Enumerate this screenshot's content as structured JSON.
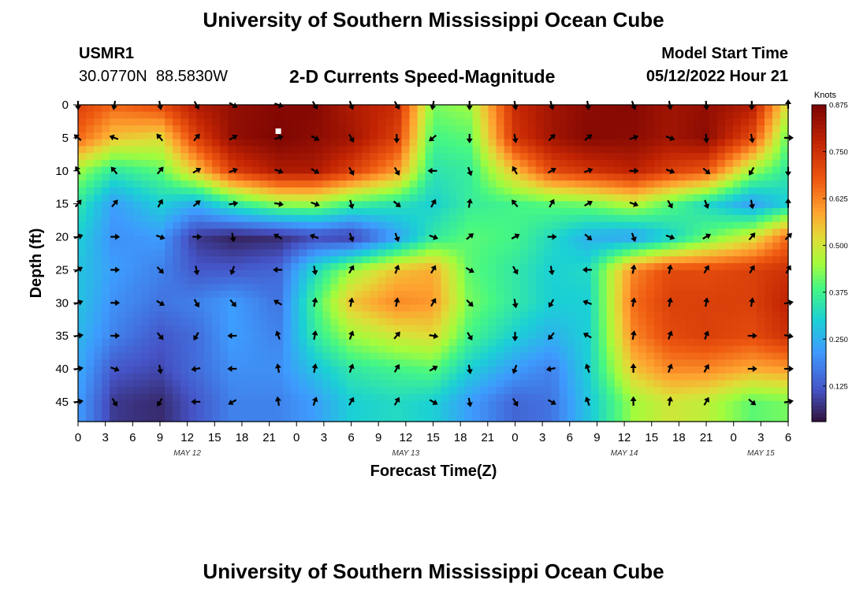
{
  "page": {
    "title": "University of Southern Mississippi Ocean Cube",
    "station_id": "USMR1",
    "station_coords": "30.0770N  88.5830W",
    "chart_title": "2-D Currents Speed-Magnitude",
    "model_start_label": "Model Start Time",
    "model_start_value": "05/12/2022 Hour 21",
    "footer_title": "University of Southern Mississippi Ocean Cube"
  },
  "chart_data": {
    "type": "heatmap",
    "title": "2-D Currents Speed-Magnitude",
    "xlabel": "Forecast Time(Z)",
    "ylabel": "Depth (ft)",
    "x_ticks": [
      "0",
      "3",
      "6",
      "9",
      "12",
      "15",
      "18",
      "21",
      "0",
      "3",
      "6",
      "9",
      "12",
      "15",
      "18",
      "21",
      "0",
      "3",
      "6",
      "9",
      "12",
      "15",
      "18",
      "21",
      "0",
      "3",
      "6"
    ],
    "x_range_hours": [
      0,
      78
    ],
    "date_labels": [
      {
        "label": "MAY 12",
        "hour": 12
      },
      {
        "label": "MAY 13",
        "hour": 36
      },
      {
        "label": "MAY 14",
        "hour": 60
      },
      {
        "label": "MAY 15",
        "hour": 75
      }
    ],
    "y_ticks": [
      0,
      5,
      10,
      15,
      20,
      25,
      30,
      35,
      40,
      45
    ],
    "ylim": [
      0,
      48
    ],
    "y_inverted": true,
    "colorbar": {
      "label": "Knots",
      "ticks": [
        "0.875",
        "0.750",
        "0.625",
        "0.500",
        "0.375",
        "0.250",
        "0.125"
      ],
      "range": [
        0.03,
        0.875
      ],
      "colormap": "turbo"
    },
    "arrow_hours": [
      0,
      4,
      9,
      13,
      17,
      22,
      26,
      30,
      35,
      39,
      43,
      48,
      52,
      56,
      61,
      65,
      69,
      74,
      78
    ],
    "arrow_depths": [
      0,
      5,
      10,
      15,
      20,
      25,
      30,
      35,
      40,
      45
    ],
    "speed_field": {
      "note": "speed in knots by depth (rows) and forecast hour (columns)",
      "hours": [
        0,
        4,
        9,
        13,
        17,
        22,
        26,
        30,
        35,
        39,
        43,
        48,
        52,
        56,
        61,
        65,
        69,
        74,
        78
      ],
      "depths": [
        0,
        5,
        10,
        15,
        20,
        25,
        30,
        35,
        40,
        45
      ],
      "values": [
        [
          0.72,
          0.66,
          0.7,
          0.8,
          0.84,
          0.86,
          0.86,
          0.8,
          0.76,
          0.42,
          0.45,
          0.76,
          0.82,
          0.85,
          0.86,
          0.82,
          0.84,
          0.8,
          0.5
        ],
        [
          0.66,
          0.55,
          0.52,
          0.72,
          0.84,
          0.87,
          0.85,
          0.82,
          0.72,
          0.38,
          0.4,
          0.74,
          0.82,
          0.86,
          0.85,
          0.82,
          0.85,
          0.7,
          0.4
        ],
        [
          0.45,
          0.35,
          0.4,
          0.55,
          0.72,
          0.8,
          0.8,
          0.72,
          0.6,
          0.34,
          0.36,
          0.56,
          0.7,
          0.74,
          0.78,
          0.72,
          0.68,
          0.45,
          0.35
        ],
        [
          0.35,
          0.22,
          0.3,
          0.25,
          0.35,
          0.44,
          0.45,
          0.38,
          0.34,
          0.3,
          0.36,
          0.38,
          0.4,
          0.42,
          0.48,
          0.4,
          0.32,
          0.22,
          0.3
        ],
        [
          0.3,
          0.2,
          0.22,
          0.08,
          0.05,
          0.06,
          0.1,
          0.08,
          0.22,
          0.35,
          0.4,
          0.38,
          0.32,
          0.25,
          0.22,
          0.3,
          0.4,
          0.5,
          0.65
        ],
        [
          0.28,
          0.22,
          0.18,
          0.12,
          0.12,
          0.14,
          0.32,
          0.45,
          0.55,
          0.58,
          0.4,
          0.35,
          0.3,
          0.32,
          0.62,
          0.7,
          0.7,
          0.72,
          0.75
        ],
        [
          0.28,
          0.2,
          0.16,
          0.18,
          0.22,
          0.16,
          0.38,
          0.55,
          0.62,
          0.6,
          0.42,
          0.35,
          0.3,
          0.3,
          0.65,
          0.72,
          0.72,
          0.72,
          0.78
        ],
        [
          0.26,
          0.18,
          0.12,
          0.15,
          0.22,
          0.18,
          0.35,
          0.45,
          0.5,
          0.52,
          0.38,
          0.3,
          0.25,
          0.3,
          0.62,
          0.7,
          0.72,
          0.7,
          0.75
        ],
        [
          0.24,
          0.12,
          0.1,
          0.15,
          0.2,
          0.2,
          0.28,
          0.35,
          0.38,
          0.4,
          0.3,
          0.22,
          0.18,
          0.3,
          0.55,
          0.62,
          0.62,
          0.58,
          0.6
        ],
        [
          0.22,
          0.08,
          0.06,
          0.12,
          0.18,
          0.18,
          0.22,
          0.3,
          0.32,
          0.3,
          0.22,
          0.14,
          0.16,
          0.28,
          0.45,
          0.5,
          0.48,
          0.4,
          0.42
        ]
      ]
    },
    "direction_field": {
      "note": "arrow bearings in degrees (0 = up, clockwise), same grid as speed_field",
      "values": [
        [
          180,
          190,
          170,
          150,
          120,
          110,
          150,
          160,
          150,
          190,
          180,
          170,
          165,
          170,
          160,
          170,
          175,
          180,
          0
        ],
        [
          310,
          290,
          320,
          40,
          60,
          70,
          120,
          150,
          180,
          230,
          180,
          170,
          45,
          50,
          70,
          110,
          175,
          170,
          90
        ],
        [
          330,
          320,
          40,
          60,
          70,
          110,
          120,
          150,
          150,
          270,
          160,
          330,
          60,
          70,
          90,
          110,
          130,
          210,
          180
        ],
        [
          40,
          40,
          30,
          50,
          80,
          100,
          110,
          165,
          130,
          30,
          10,
          320,
          30,
          60,
          110,
          150,
          160,
          170,
          0
        ],
        [
          70,
          90,
          110,
          90,
          170,
          300,
          290,
          160,
          160,
          110,
          50,
          60,
          90,
          130,
          160,
          110,
          60,
          40,
          45
        ],
        [
          60,
          90,
          135,
          170,
          200,
          270,
          170,
          30,
          20,
          30,
          120,
          150,
          170,
          270,
          10,
          10,
          30,
          30,
          30
        ],
        [
          70,
          90,
          120,
          150,
          140,
          300,
          10,
          10,
          10,
          30,
          135,
          170,
          210,
          290,
          10,
          10,
          10,
          10,
          80
        ],
        [
          80,
          90,
          140,
          210,
          270,
          340,
          10,
          20,
          40,
          100,
          150,
          180,
          220,
          300,
          10,
          20,
          20,
          90,
          100
        ],
        [
          80,
          110,
          170,
          260,
          270,
          350,
          10,
          20,
          30,
          60,
          170,
          200,
          260,
          340,
          0,
          20,
          30,
          90,
          90
        ],
        [
          80,
          150,
          210,
          270,
          240,
          350,
          20,
          30,
          30,
          120,
          170,
          150,
          120,
          340,
          0,
          10,
          30,
          130,
          80
        ]
      ]
    },
    "marker": {
      "hour": 22,
      "depth": 4
    }
  }
}
